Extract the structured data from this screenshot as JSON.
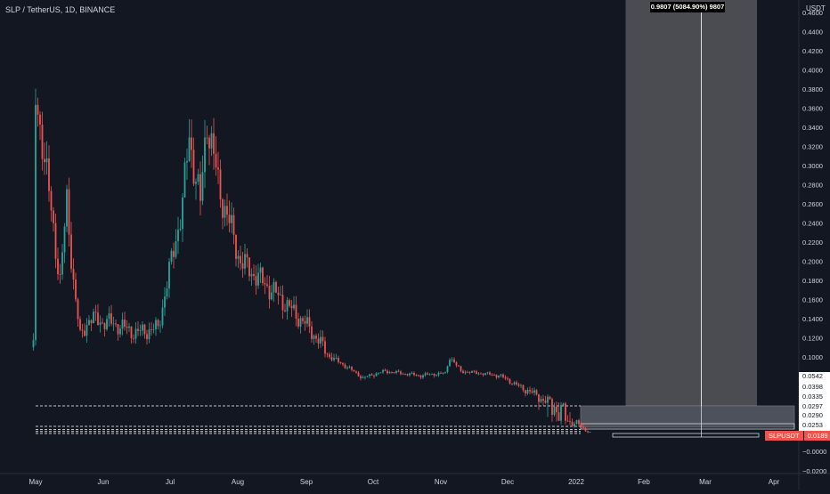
{
  "header": {
    "symbol": "SLP / TetherUS, 1D, BINANCE",
    "currency": "USDT"
  },
  "colors": {
    "bg": "#131722",
    "up": "#26a69a",
    "down": "#ef5350",
    "axis_text": "#d1d4dc",
    "grid": "#1e222d"
  },
  "tooltip": {
    "text": "0.9807 (5084.90%) 9807"
  },
  "price_tag": {
    "label": "SLPUSDT",
    "value": "0.0189"
  },
  "chart_data": {
    "type": "candlestick",
    "title": "SLP / TetherUS, 1D, BINANCE",
    "y_unit": "USDT",
    "y_ticks": [
      "0.4600",
      "0.4400",
      "0.4200",
      "0.4000",
      "0.3800",
      "0.3600",
      "0.3400",
      "0.3200",
      "0.3000",
      "0.2800",
      "0.2600",
      "0.2400",
      "0.2200",
      "0.2000",
      "0.1800",
      "0.1600",
      "0.1400",
      "0.1200",
      "0.1000",
      "0.0542",
      "0.0398",
      "0.0335",
      "0.0297",
      "0.0290",
      "0.0253",
      "−0.0000",
      "−0.0200"
    ],
    "x_ticks": [
      "May",
      "Jun",
      "Jul",
      "Aug",
      "Sep",
      "Oct",
      "Nov",
      "Dec",
      "2022",
      "Feb",
      "Mar",
      "Apr"
    ],
    "grid": false,
    "ylim": [
      -0.02,
      0.46
    ],
    "support_levels": [
      0.0297,
      0.0253,
      0.022,
      0.02,
      0.018
    ],
    "last_price": 0.0189,
    "keypoints": [
      {
        "date": "2021-04-30",
        "price": 0.11
      },
      {
        "date": "2021-05-01",
        "price": 0.365
      },
      {
        "date": "2021-05-04",
        "price": 0.33
      },
      {
        "date": "2021-05-08",
        "price": 0.25
      },
      {
        "date": "2021-05-12",
        "price": 0.18
      },
      {
        "date": "2021-05-15",
        "price": 0.26
      },
      {
        "date": "2021-05-18",
        "price": 0.18
      },
      {
        "date": "2021-05-21",
        "price": 0.12
      },
      {
        "date": "2021-05-25",
        "price": 0.14
      },
      {
        "date": "2021-06-05",
        "price": 0.135
      },
      {
        "date": "2021-06-15",
        "price": 0.125
      },
      {
        "date": "2021-06-25",
        "price": 0.13
      },
      {
        "date": "2021-07-01",
        "price": 0.2
      },
      {
        "date": "2021-07-06",
        "price": 0.26
      },
      {
        "date": "2021-07-09",
        "price": 0.33
      },
      {
        "date": "2021-07-14",
        "price": 0.26
      },
      {
        "date": "2021-07-17",
        "price": 0.35
      },
      {
        "date": "2021-07-22",
        "price": 0.28
      },
      {
        "date": "2021-08-01",
        "price": 0.2
      },
      {
        "date": "2021-08-15",
        "price": 0.17
      },
      {
        "date": "2021-09-01",
        "price": 0.13
      },
      {
        "date": "2021-09-15",
        "price": 0.085
      },
      {
        "date": "2021-09-25",
        "price": 0.05
      },
      {
        "date": "2021-10-05",
        "price": 0.065
      },
      {
        "date": "2021-10-20",
        "price": 0.055
      },
      {
        "date": "2021-11-01",
        "price": 0.06
      },
      {
        "date": "2021-11-03",
        "price": 0.1
      },
      {
        "date": "2021-11-08",
        "price": 0.065
      },
      {
        "date": "2021-11-25",
        "price": 0.055
      },
      {
        "date": "2021-12-04",
        "price": 0.04
      },
      {
        "date": "2021-12-15",
        "price": 0.032
      },
      {
        "date": "2021-12-31",
        "price": 0.026
      },
      {
        "date": "2022-01-05",
        "price": 0.0189
      }
    ],
    "projection": {
      "start": "2022-01-21",
      "end": "2022-03-21",
      "target_date": "2022-02-24",
      "target_price": 0.9807
    }
  }
}
